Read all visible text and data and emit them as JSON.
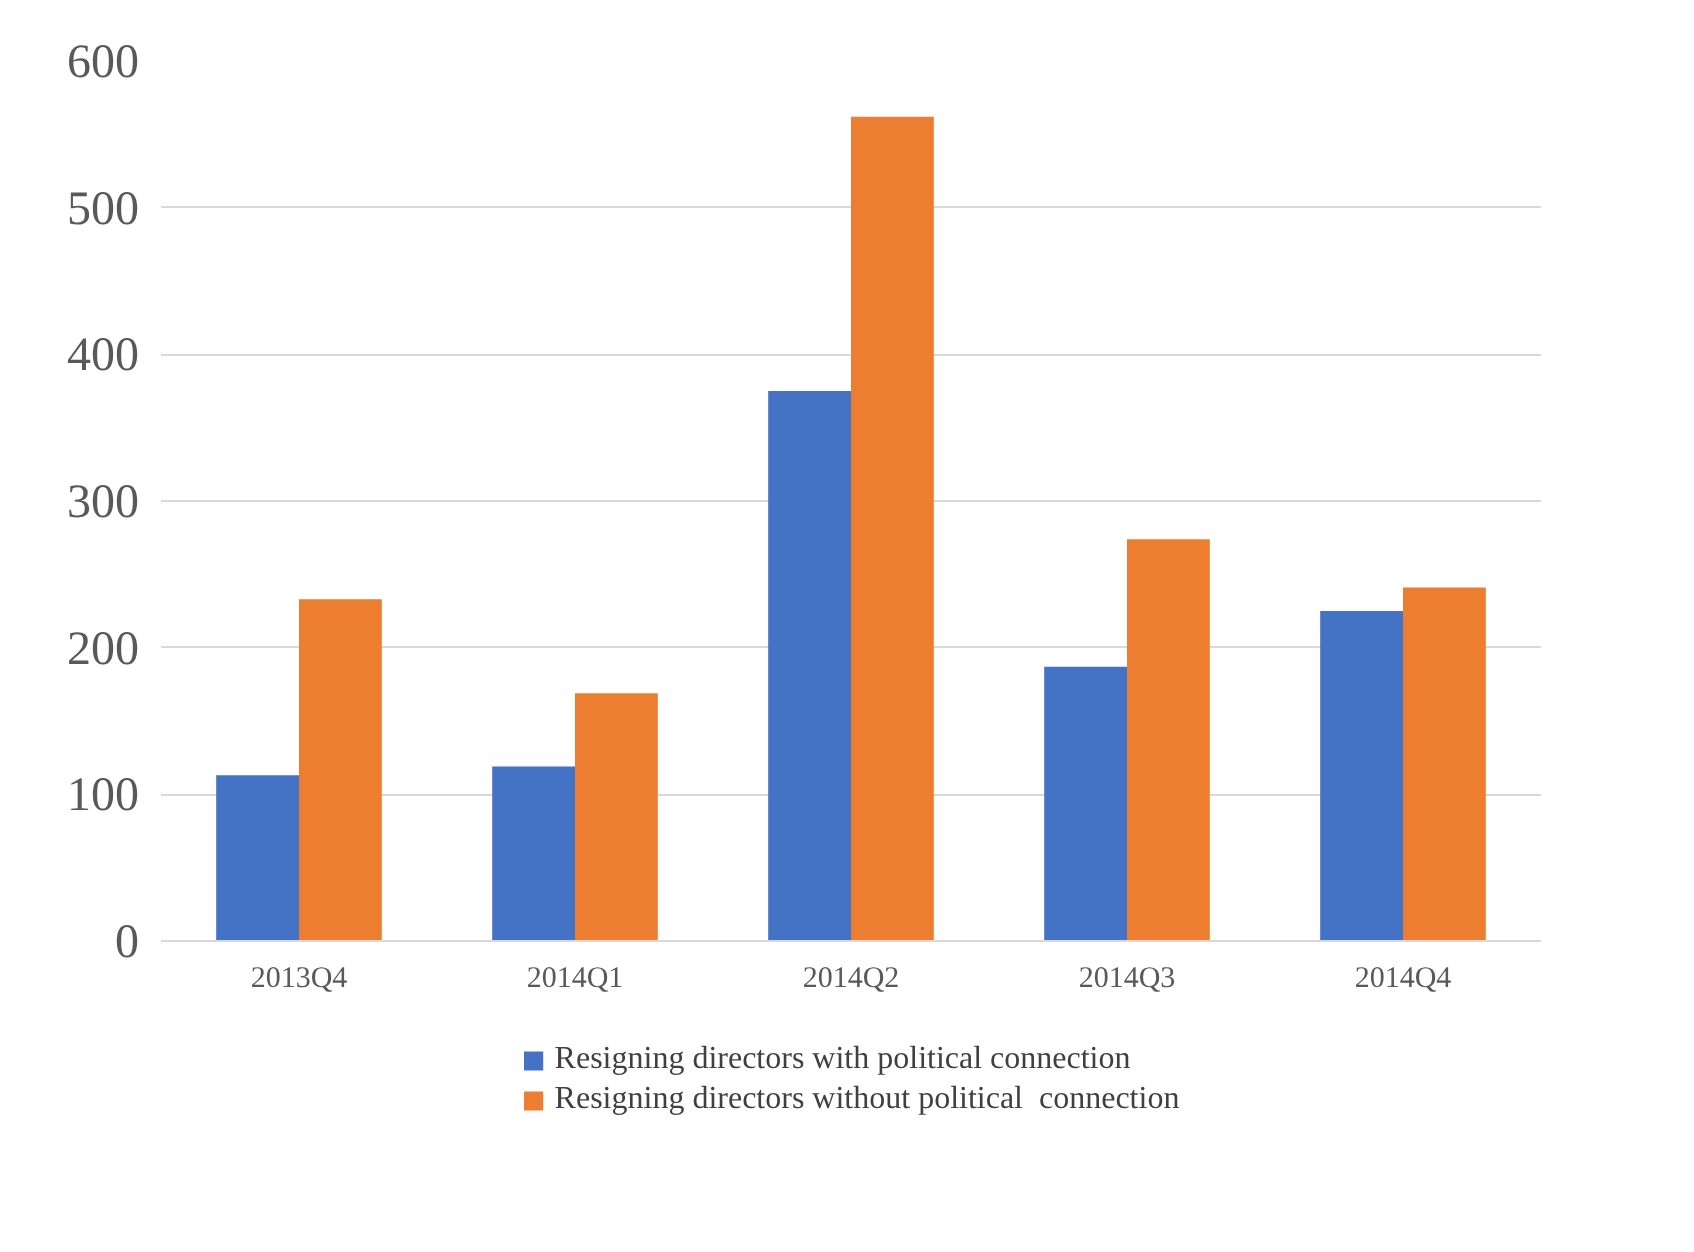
{
  "chart_data": {
    "type": "bar",
    "categories": [
      "2013Q4",
      "2014Q1",
      "2014Q2",
      "2014Q3",
      "2014Q4"
    ],
    "series": [
      {
        "name": "Resigning directors with political connection",
        "color": "#4472c4",
        "values": [
          113,
          119,
          375,
          187,
          225
        ]
      },
      {
        "name": "Resigning directors without political  connection",
        "color": "#ed7d31",
        "values": [
          233,
          169,
          562,
          274,
          241
        ]
      }
    ],
    "ylim": [
      0,
      600
    ],
    "yticks": [
      0,
      100,
      200,
      300,
      400,
      500,
      600
    ],
    "grid": "y",
    "legend": "bottom"
  }
}
